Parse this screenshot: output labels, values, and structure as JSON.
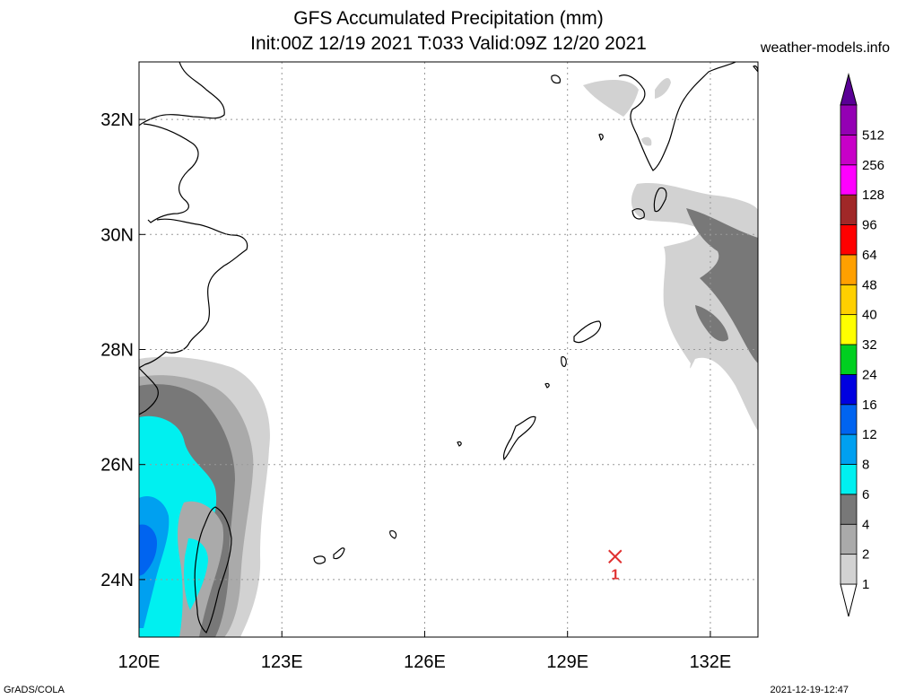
{
  "title_line1": "GFS Accumulated Precipitation (mm)",
  "title_line2": "Init:00Z 12/19 2021 T:033 Valid:09Z 12/20 2021",
  "site": "weather-models.info",
  "footer_left": "GrADS/COLA",
  "footer_right": "2021-12-19-12:47",
  "map": {
    "lon_range": [
      120,
      133
    ],
    "lat_range": [
      23,
      33
    ],
    "lon_ticks": [
      {
        "value": 120,
        "label": "120E"
      },
      {
        "value": 123,
        "label": "123E"
      },
      {
        "value": 126,
        "label": "126E"
      },
      {
        "value": 129,
        "label": "129E"
      },
      {
        "value": 132,
        "label": "132E"
      }
    ],
    "lat_ticks": [
      {
        "value": 24,
        "label": "24N"
      },
      {
        "value": 26,
        "label": "26N"
      },
      {
        "value": 28,
        "label": "28N"
      },
      {
        "value": 30,
        "label": "30N"
      },
      {
        "value": 32,
        "label": "32N"
      }
    ],
    "marker": {
      "lon": 130.0,
      "lat": 24.4,
      "label": "1",
      "color": "#e03030"
    }
  },
  "colorbar": [
    {
      "label": "1",
      "color": "#d2d2d2"
    },
    {
      "label": "2",
      "color": "#aaaaaa"
    },
    {
      "label": "4",
      "color": "#787878"
    },
    {
      "label": "6",
      "color": "#00f0f0"
    },
    {
      "label": "8",
      "color": "#00a0f0"
    },
    {
      "label": "12",
      "color": "#0064f0"
    },
    {
      "label": "16",
      "color": "#0000e0"
    },
    {
      "label": "24",
      "color": "#00d020"
    },
    {
      "label": "32",
      "color": "#ffff00"
    },
    {
      "label": "40",
      "color": "#ffd000"
    },
    {
      "label": "48",
      "color": "#ffa000"
    },
    {
      "label": "64",
      "color": "#ff0000"
    },
    {
      "label": "96",
      "color": "#a02828"
    },
    {
      "label": "128",
      "color": "#ff00ff"
    },
    {
      "label": "256",
      "color": "#c800c8"
    },
    {
      "label": "512",
      "color": "#9400b4"
    }
  ],
  "colorbar_top_arrow_color": "#5a0096",
  "colorbar_bottom_arrow_color": "#ffffff"
}
